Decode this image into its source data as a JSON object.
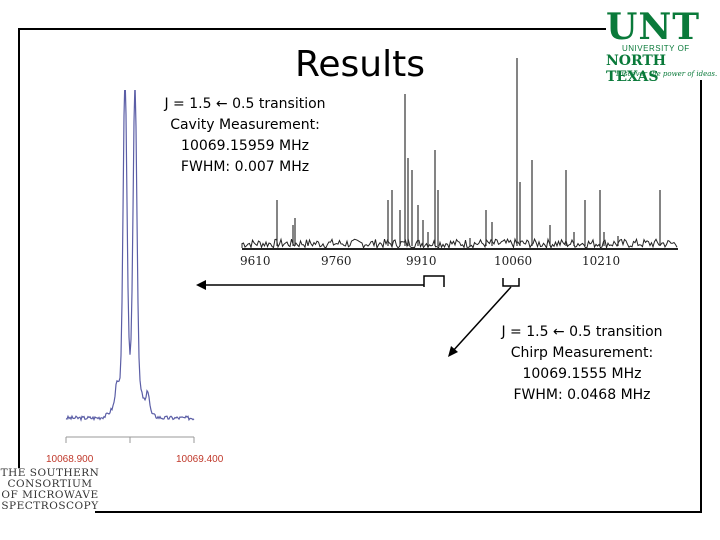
{
  "slide": {
    "title": "Results",
    "cavity_note": {
      "lines": [
        "J = 1.5 ← 0.5 transition",
        "Cavity Measurement:",
        "10069.15959 MHz",
        "FWHM: 0.007 MHz"
      ]
    },
    "chirp_note": {
      "lines": [
        "J = 1.5 ← 0.5 transition",
        "Chirp Measurement:",
        "10069.1555 MHz",
        "FWHM: 0.0468 MHz"
      ]
    }
  },
  "broadband_spectrum": {
    "tick_labels": [
      "9610",
      "9760",
      "9910",
      "10060",
      "10210"
    ]
  },
  "cavity_spectrum": {
    "tick_labels": [
      "10068.900",
      "10069.400"
    ],
    "tick_color": "#c0392b",
    "trace_color": "#5b5ea6"
  },
  "logos": {
    "unt": {
      "wordmark": "UNT",
      "line1": "UNIVERSITY OF",
      "line2": "NORTH TEXAS",
      "tagline": "Discover the power of ideas.",
      "color": "#0a7a3a"
    },
    "sss": {
      "lines": [
        "THE SOUTHERN",
        "CONSORTIUM",
        "OF MICROWAVE",
        "SPECTROSCOPY"
      ]
    }
  }
}
